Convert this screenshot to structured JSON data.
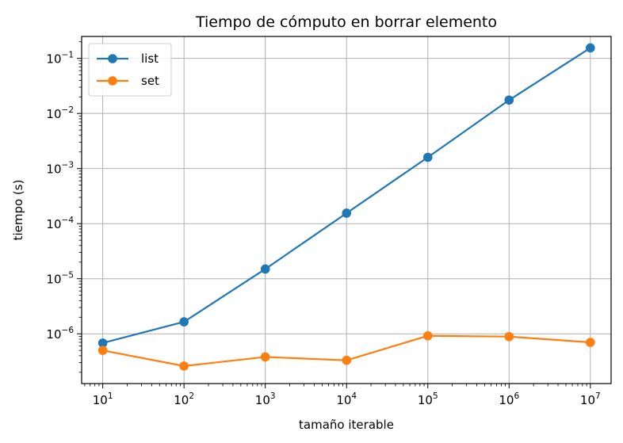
{
  "chart_data": {
    "type": "line",
    "title": "Tiempo de cómputo en borrar elemento",
    "xlabel": "tamaño iterable",
    "ylabel": "tiempo (s)",
    "xscale": "log",
    "yscale": "log",
    "xlim": [
      5.5,
      18000000
    ],
    "ylim": [
      1.25e-07,
      0.25
    ],
    "grid": true,
    "legend_position": "top-left",
    "x": [
      10,
      100,
      1000,
      10000,
      100000,
      1000000,
      10000000
    ],
    "x_ticks": [
      {
        "value": 10,
        "base": "10",
        "exp": "1"
      },
      {
        "value": 100,
        "base": "10",
        "exp": "2"
      },
      {
        "value": 1000,
        "base": "10",
        "exp": "3"
      },
      {
        "value": 10000,
        "base": "10",
        "exp": "4"
      },
      {
        "value": 100000,
        "base": "10",
        "exp": "5"
      },
      {
        "value": 1000000,
        "base": "10",
        "exp": "6"
      },
      {
        "value": 10000000,
        "base": "10",
        "exp": "7"
      }
    ],
    "y_ticks": [
      {
        "value": 1e-06,
        "base": "10",
        "exp": "−6"
      },
      {
        "value": 1e-05,
        "base": "10",
        "exp": "−5"
      },
      {
        "value": 0.0001,
        "base": "10",
        "exp": "−4"
      },
      {
        "value": 0.001,
        "base": "10",
        "exp": "−3"
      },
      {
        "value": 0.01,
        "base": "10",
        "exp": "−2"
      },
      {
        "value": 0.1,
        "base": "10",
        "exp": "−1"
      }
    ],
    "series": [
      {
        "name": "list",
        "color": "#1f77b4",
        "values": [
          6.8e-07,
          1.65e-06,
          1.5e-05,
          0.000155,
          0.0016,
          0.0175,
          0.155
        ]
      },
      {
        "name": "set",
        "color": "#ff7f0e",
        "values": [
          5e-07,
          2.6e-07,
          3.8e-07,
          3.3e-07,
          9.2e-07,
          8.9e-07,
          7e-07
        ]
      }
    ]
  }
}
